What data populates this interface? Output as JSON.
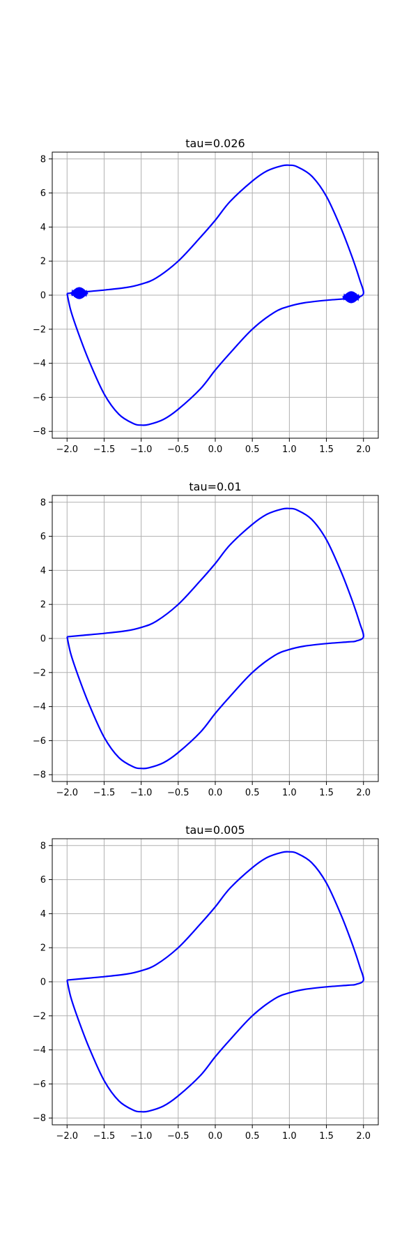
{
  "chart_data": [
    {
      "type": "line",
      "title": "tau=0.026",
      "xlabel": "",
      "ylabel": "",
      "xlim": [
        -2.2,
        2.2
      ],
      "ylim": [
        -8.4,
        8.4
      ],
      "xticks": [
        -2.0,
        -1.5,
        -1.0,
        -0.5,
        0.0,
        0.5,
        1.0,
        1.5,
        2.0
      ],
      "xtick_labels": [
        "−2.0",
        "−1.5",
        "−1.0",
        "−0.5",
        "0.0",
        "0.5",
        "1.0",
        "1.5",
        "2.0"
      ],
      "yticks": [
        8,
        6,
        4,
        2,
        0,
        -2,
        -4,
        -6,
        -8
      ],
      "ytick_labels": [
        "8",
        "6",
        "4",
        "2",
        "0",
        "−2",
        "−4",
        "−6",
        "−8"
      ],
      "grid": true,
      "color": "#0000ff",
      "series": [
        {
          "x": [
            -2.0,
            -1.8,
            -1.5,
            -1.2,
            -1.0,
            -0.8,
            -0.5,
            -0.2,
            0.0,
            0.2,
            0.5,
            0.7,
            0.9,
            1.0,
            1.1,
            1.3,
            1.5,
            1.7,
            1.85,
            1.95,
            2.0,
            1.9,
            1.8,
            1.5,
            1.2,
            1.0,
            0.8,
            0.5,
            0.2,
            0.0,
            -0.2,
            -0.5,
            -0.7,
            -0.9,
            -1.0,
            -1.1,
            -1.3,
            -1.5,
            -1.7,
            -1.85,
            -1.95,
            -2.0
          ],
          "y": [
            0.1,
            0.18,
            0.3,
            0.45,
            0.65,
            1.0,
            2.0,
            3.4,
            4.4,
            5.5,
            6.7,
            7.3,
            7.6,
            7.63,
            7.55,
            7.0,
            5.8,
            3.9,
            2.2,
            0.9,
            0.1,
            -0.15,
            -0.2,
            -0.3,
            -0.45,
            -0.65,
            -1.0,
            -2.0,
            -3.4,
            -4.4,
            -5.5,
            -6.7,
            -7.3,
            -7.6,
            -7.63,
            -7.55,
            -7.0,
            -5.8,
            -3.9,
            -2.2,
            -0.9,
            0.1
          ]
        }
      ],
      "oscillations": [
        {
          "x_start": -1.95,
          "x_end": -1.72,
          "y_center": 0.12,
          "amplitude": 0.35
        },
        {
          "x_start": 1.72,
          "x_end": 1.95,
          "y_center": -0.12,
          "amplitude": 0.35
        }
      ]
    },
    {
      "type": "line",
      "title": "tau=0.01",
      "xlabel": "",
      "ylabel": "",
      "xlim": [
        -2.2,
        2.2
      ],
      "ylim": [
        -8.4,
        8.4
      ],
      "xticks": [
        -2.0,
        -1.5,
        -1.0,
        -0.5,
        0.0,
        0.5,
        1.0,
        1.5,
        2.0
      ],
      "xtick_labels": [
        "−2.0",
        "−1.5",
        "−1.0",
        "−0.5",
        "0.0",
        "0.5",
        "1.0",
        "1.5",
        "2.0"
      ],
      "yticks": [
        8,
        6,
        4,
        2,
        0,
        -2,
        -4,
        -6,
        -8
      ],
      "ytick_labels": [
        "8",
        "6",
        "4",
        "2",
        "0",
        "−2",
        "−4",
        "−6",
        "−8"
      ],
      "grid": true,
      "color": "#0000ff",
      "series": [
        {
          "x": [
            -2.0,
            -1.8,
            -1.5,
            -1.2,
            -1.0,
            -0.8,
            -0.5,
            -0.2,
            0.0,
            0.2,
            0.5,
            0.7,
            0.9,
            1.0,
            1.1,
            1.3,
            1.5,
            1.7,
            1.85,
            1.95,
            2.0,
            1.9,
            1.8,
            1.5,
            1.2,
            1.0,
            0.8,
            0.5,
            0.2,
            0.0,
            -0.2,
            -0.5,
            -0.7,
            -0.9,
            -1.0,
            -1.1,
            -1.3,
            -1.5,
            -1.7,
            -1.85,
            -1.95,
            -2.0
          ],
          "y": [
            0.1,
            0.18,
            0.3,
            0.45,
            0.65,
            1.0,
            2.0,
            3.4,
            4.4,
            5.5,
            6.7,
            7.3,
            7.6,
            7.63,
            7.55,
            7.0,
            5.8,
            3.9,
            2.2,
            0.9,
            0.1,
            -0.15,
            -0.2,
            -0.3,
            -0.45,
            -0.65,
            -1.0,
            -2.0,
            -3.4,
            -4.4,
            -5.5,
            -6.7,
            -7.3,
            -7.6,
            -7.63,
            -7.55,
            -7.0,
            -5.8,
            -3.9,
            -2.2,
            -0.9,
            0.1
          ]
        }
      ],
      "oscillations": []
    },
    {
      "type": "line",
      "title": "tau=0.005",
      "xlabel": "",
      "ylabel": "",
      "xlim": [
        -2.2,
        2.2
      ],
      "ylim": [
        -8.4,
        8.4
      ],
      "xticks": [
        -2.0,
        -1.5,
        -1.0,
        -0.5,
        0.0,
        0.5,
        1.0,
        1.5,
        2.0
      ],
      "xtick_labels": [
        "−2.0",
        "−1.5",
        "−1.0",
        "−0.5",
        "0.0",
        "0.5",
        "1.0",
        "1.5",
        "2.0"
      ],
      "yticks": [
        8,
        6,
        4,
        2,
        0,
        -2,
        -4,
        -6,
        -8
      ],
      "ytick_labels": [
        "8",
        "6",
        "4",
        "2",
        "0",
        "−2",
        "−4",
        "−6",
        "−8"
      ],
      "grid": true,
      "color": "#0000ff",
      "series": [
        {
          "x": [
            -2.0,
            -1.8,
            -1.5,
            -1.2,
            -1.0,
            -0.8,
            -0.5,
            -0.2,
            0.0,
            0.2,
            0.5,
            0.7,
            0.9,
            1.0,
            1.1,
            1.3,
            1.5,
            1.7,
            1.85,
            1.95,
            2.0,
            1.9,
            1.8,
            1.5,
            1.2,
            1.0,
            0.8,
            0.5,
            0.2,
            0.0,
            -0.2,
            -0.5,
            -0.7,
            -0.9,
            -1.0,
            -1.1,
            -1.3,
            -1.5,
            -1.7,
            -1.85,
            -1.95,
            -2.0
          ],
          "y": [
            0.1,
            0.18,
            0.3,
            0.45,
            0.65,
            1.0,
            2.0,
            3.4,
            4.4,
            5.5,
            6.7,
            7.3,
            7.6,
            7.63,
            7.55,
            7.0,
            5.8,
            3.9,
            2.2,
            0.9,
            0.1,
            -0.15,
            -0.2,
            -0.3,
            -0.45,
            -0.65,
            -1.0,
            -2.0,
            -3.4,
            -4.4,
            -5.5,
            -6.7,
            -7.3,
            -7.6,
            -7.63,
            -7.55,
            -7.0,
            -5.8,
            -3.9,
            -2.2,
            -0.9,
            0.1
          ]
        }
      ],
      "oscillations": []
    }
  ]
}
